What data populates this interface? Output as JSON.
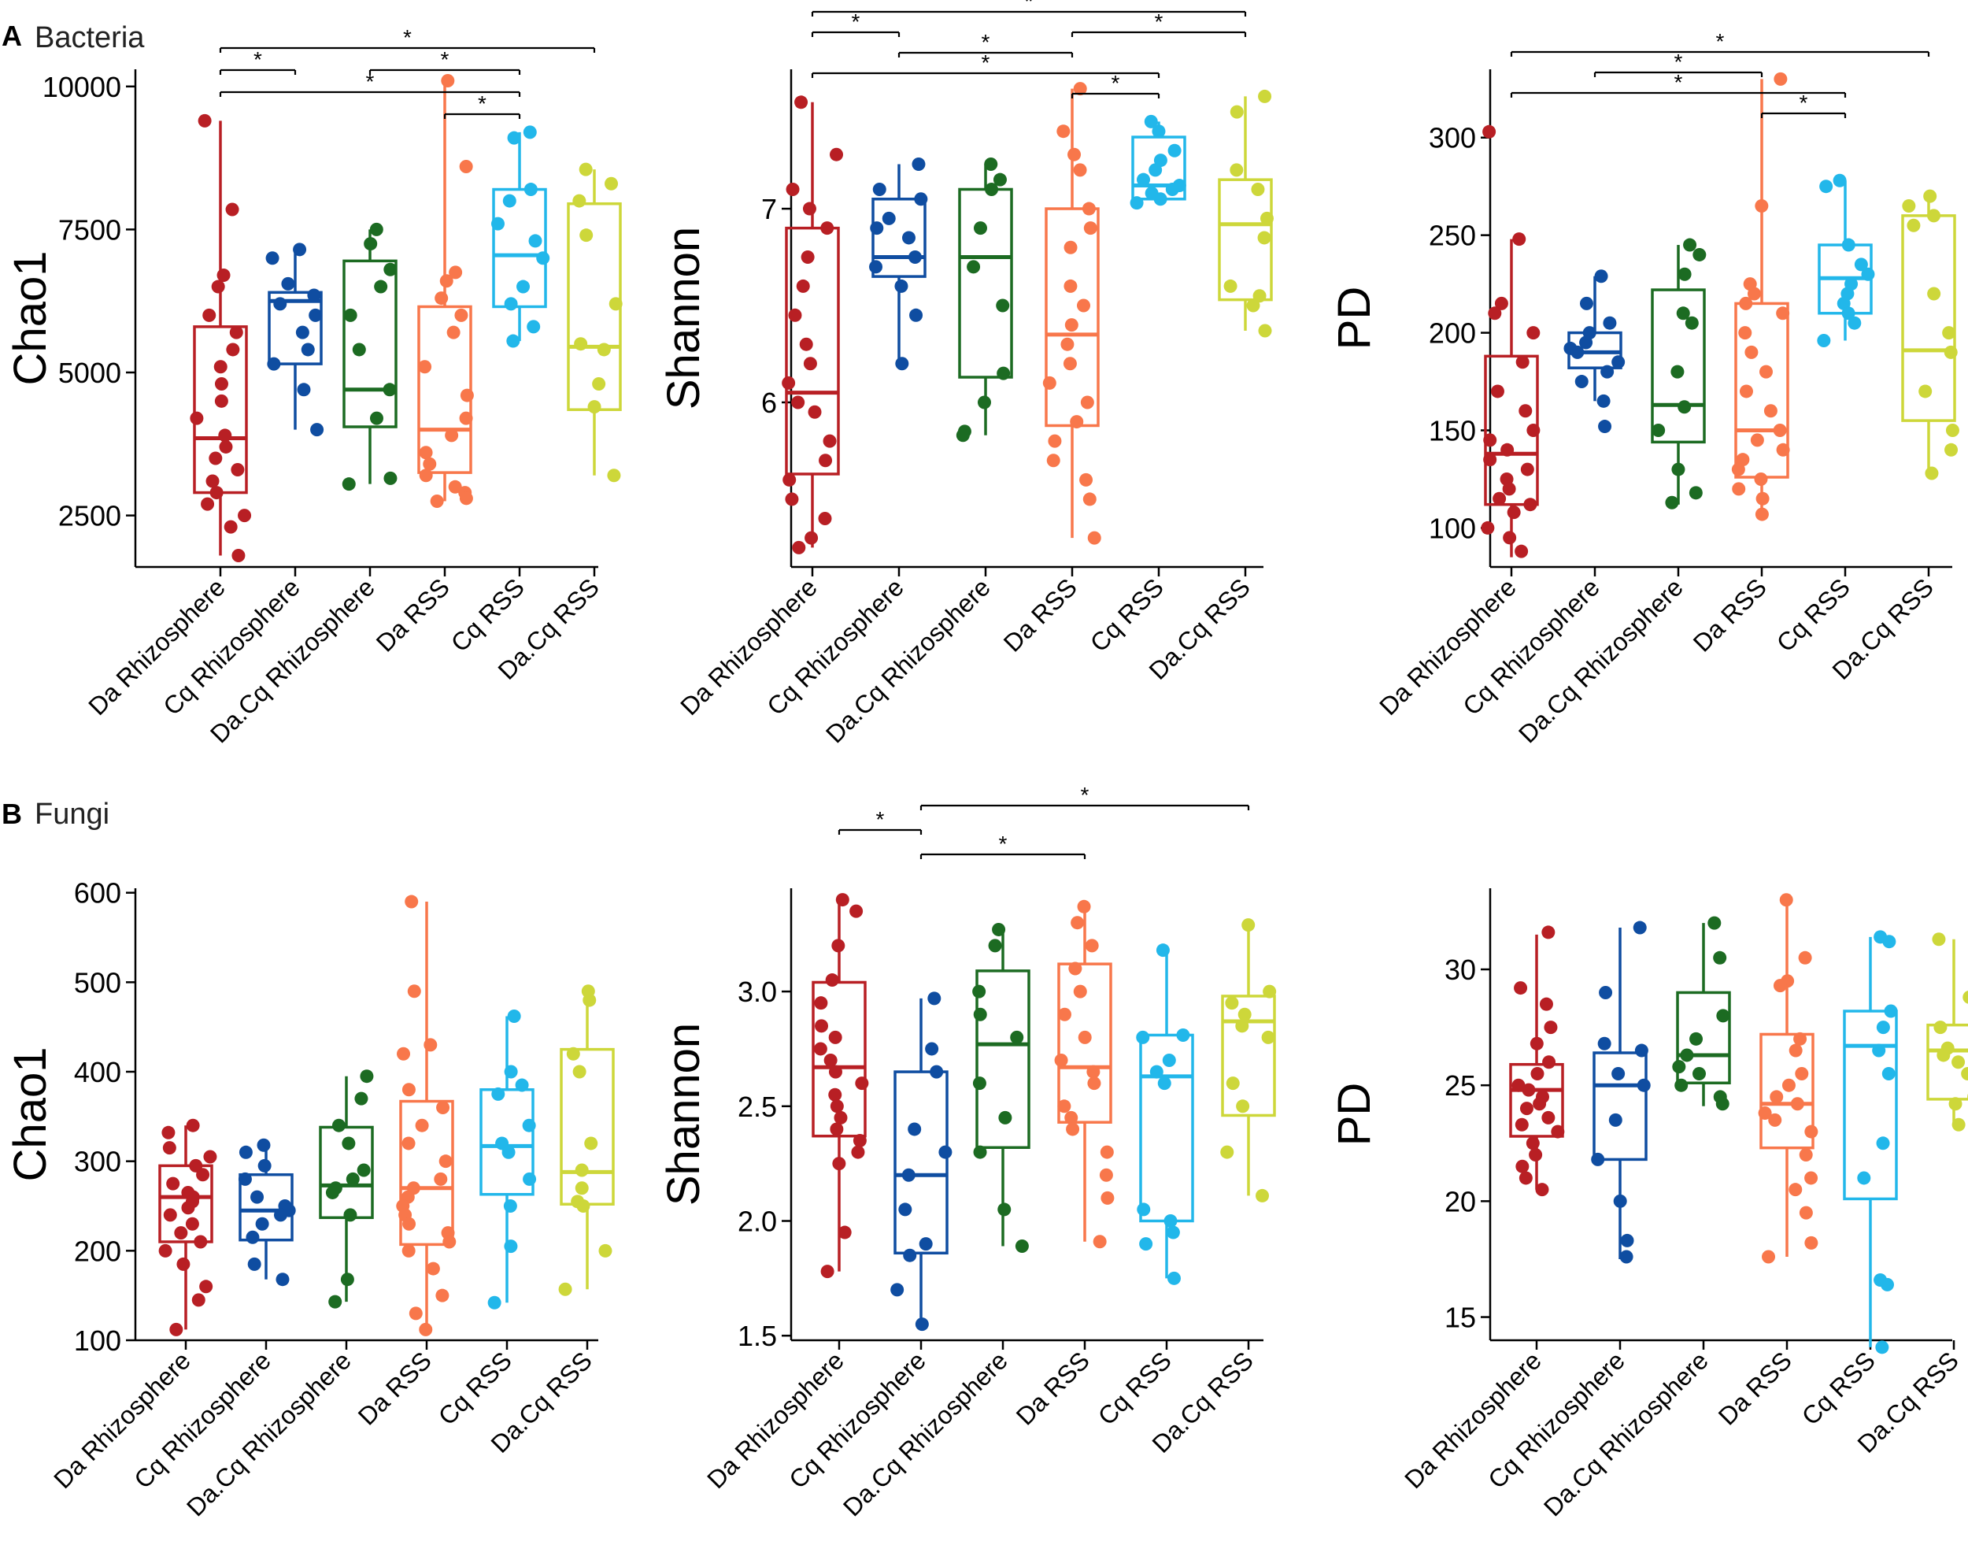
{
  "figure": {
    "groups": [
      "Da Rhizosphere",
      "Cq Rhizosphere",
      "Da.Cq Rhizosphere",
      "Da RSS",
      "Cq RSS",
      "Da.Cq RSS"
    ],
    "colors": [
      "#b81f24",
      "#0f4da1",
      "#1c6b22",
      "#f8774b",
      "#22b7ea",
      "#cdd73a"
    ],
    "sections": [
      {
        "letter": "A",
        "title": "Bacteria"
      },
      {
        "letter": "B",
        "title": "Fungi"
      }
    ],
    "significance_mark": "*"
  },
  "chart_data": [
    {
      "type": "box",
      "section": "Bacteria",
      "ylabel": "Chao1",
      "ylim": [
        1600,
        10300
      ],
      "yticks": [
        2500,
        5000,
        7500,
        10000
      ],
      "boxes": [
        {
          "q1": 2900,
          "median": 3850,
          "q3": 5800,
          "wl": 1800,
          "wh": 9400
        },
        {
          "q1": 5150,
          "median": 6250,
          "q3": 6400,
          "wl": 4000,
          "wh": 7150
        },
        {
          "q1": 4050,
          "median": 4700,
          "q3": 6950,
          "wl": 3050,
          "wh": 7500
        },
        {
          "q1": 3250,
          "median": 4000,
          "q3": 6150,
          "wl": 2750,
          "wh": 10100
        },
        {
          "q1": 6150,
          "median": 7050,
          "q3": 8200,
          "wl": 5550,
          "wh": 9200
        },
        {
          "q1": 4350,
          "median": 5450,
          "q3": 7950,
          "wl": 3200,
          "wh": 8550
        }
      ],
      "points": [
        [
          9400,
          7850,
          6700,
          6500,
          6000,
          5700,
          5400,
          5100,
          4800,
          4500,
          4200,
          3900,
          3700,
          3500,
          3300,
          3100,
          2900,
          2700,
          2500,
          2300,
          1800
        ],
        [
          7150,
          7000,
          6550,
          6350,
          6200,
          6000,
          5700,
          5400,
          5150,
          4700,
          4000
        ],
        [
          7500,
          7250,
          6800,
          6500,
          6000,
          5400,
          4700,
          4200,
          3150,
          3050
        ],
        [
          10100,
          8600,
          6750,
          6600,
          6300,
          6000,
          5700,
          5100,
          4600,
          4200,
          3900,
          3600,
          3400,
          3200,
          3000,
          2900,
          2800,
          2750
        ],
        [
          9200,
          9100,
          8200,
          8000,
          7600,
          7300,
          7000,
          6500,
          6200,
          5800,
          5550
        ],
        [
          8550,
          8300,
          8000,
          7400,
          6200,
          5500,
          5400,
          4800,
          4400,
          3200
        ]
      ],
      "brackets": [
        {
          "from": 0,
          "to": 1,
          "level": 2
        },
        {
          "from": 0,
          "to": 4,
          "level": 1
        },
        {
          "from": 0,
          "to": 5,
          "level": 3
        },
        {
          "from": 2,
          "to": 4,
          "level": 2
        },
        {
          "from": 3,
          "to": 4,
          "level": 0
        }
      ]
    },
    {
      "type": "box",
      "section": "Bacteria",
      "ylabel": "Shannon",
      "ylim": [
        5.15,
        7.72
      ],
      "yticks": [
        6,
        7
      ],
      "boxes": [
        {
          "q1": 5.63,
          "median": 6.05,
          "q3": 6.9,
          "wl": 5.25,
          "wh": 7.55
        },
        {
          "q1": 6.65,
          "median": 6.75,
          "q3": 7.05,
          "wl": 6.2,
          "wh": 7.23
        },
        {
          "q1": 6.13,
          "median": 6.75,
          "q3": 7.1,
          "wl": 5.83,
          "wh": 7.23
        },
        {
          "q1": 5.88,
          "median": 6.35,
          "q3": 7.0,
          "wl": 5.3,
          "wh": 7.62
        },
        {
          "q1": 7.05,
          "median": 7.12,
          "q3": 7.37,
          "wl": 7.03,
          "wh": 7.45
        },
        {
          "q1": 6.53,
          "median": 6.92,
          "q3": 7.15,
          "wl": 6.37,
          "wh": 7.58
        }
      ],
      "points": [
        [
          7.55,
          7.28,
          7.1,
          7.0,
          6.9,
          6.75,
          6.6,
          6.45,
          6.3,
          6.2,
          6.1,
          6.0,
          5.95,
          5.8,
          5.7,
          5.6,
          5.5,
          5.4,
          5.3,
          5.25
        ],
        [
          7.23,
          7.1,
          7.05,
          6.95,
          6.9,
          6.85,
          6.75,
          6.7,
          6.6,
          6.45,
          6.2
        ],
        [
          7.23,
          7.15,
          7.1,
          6.9,
          6.7,
          6.5,
          6.15,
          6.0,
          5.85,
          5.83
        ],
        [
          7.62,
          7.4,
          7.28,
          7.2,
          7.0,
          6.9,
          6.8,
          6.6,
          6.5,
          6.4,
          6.3,
          6.2,
          6.1,
          6.0,
          5.9,
          5.8,
          5.7,
          5.6,
          5.5,
          5.3
        ],
        [
          7.45,
          7.4,
          7.3,
          7.25,
          7.2,
          7.15,
          7.12,
          7.1,
          7.08,
          7.05,
          7.03
        ],
        [
          7.58,
          7.5,
          7.2,
          7.1,
          6.95,
          6.85,
          6.6,
          6.55,
          6.5,
          6.37
        ]
      ],
      "brackets": [
        {
          "from": 0,
          "to": 1,
          "level": 3
        },
        {
          "from": 0,
          "to": 4,
          "level": 1
        },
        {
          "from": 0,
          "to": 5,
          "level": 4
        },
        {
          "from": 1,
          "to": 3,
          "level": 2
        },
        {
          "from": 3,
          "to": 4,
          "level": 0
        },
        {
          "from": 3,
          "to": 5,
          "level": 3
        }
      ]
    },
    {
      "type": "box",
      "section": "Bacteria",
      "ylabel": "PD",
      "ylim": [
        80,
        335
      ],
      "yticks": [
        100,
        150,
        200,
        250,
        300
      ],
      "boxes": [
        {
          "q1": 112,
          "median": 138,
          "q3": 188,
          "wl": 85,
          "wh": 248
        },
        {
          "q1": 182,
          "median": 190,
          "q3": 200,
          "wl": 165,
          "wh": 229
        },
        {
          "q1": 144,
          "median": 163,
          "q3": 222,
          "wl": 112,
          "wh": 245
        },
        {
          "q1": 126,
          "median": 150,
          "q3": 215,
          "wl": 107,
          "wh": 330
        },
        {
          "q1": 210,
          "median": 228,
          "q3": 245,
          "wl": 196,
          "wh": 278
        },
        {
          "q1": 155,
          "median": 191,
          "q3": 260,
          "wl": 128,
          "wh": 270
        }
      ],
      "points": [
        [
          303,
          248,
          215,
          210,
          200,
          185,
          170,
          160,
          150,
          145,
          140,
          135,
          130,
          125,
          120,
          115,
          112,
          108,
          100,
          95,
          88
        ],
        [
          229,
          215,
          205,
          200,
          195,
          192,
          190,
          185,
          180,
          175,
          165,
          152
        ],
        [
          245,
          240,
          230,
          210,
          205,
          180,
          162,
          150,
          130,
          118,
          113
        ],
        [
          330,
          265,
          225,
          220,
          215,
          210,
          200,
          190,
          180,
          170,
          160,
          150,
          145,
          140,
          135,
          130,
          125,
          120,
          115,
          107
        ],
        [
          278,
          275,
          245,
          235,
          230,
          225,
          220,
          215,
          210,
          205,
          196
        ],
        [
          270,
          265,
          260,
          255,
          220,
          200,
          190,
          170,
          150,
          140,
          128
        ]
      ],
      "brackets": [
        {
          "from": 0,
          "to": 4,
          "level": 1
        },
        {
          "from": 0,
          "to": 5,
          "level": 3
        },
        {
          "from": 1,
          "to": 3,
          "level": 2
        },
        {
          "from": 3,
          "to": 4,
          "level": 0
        }
      ]
    },
    {
      "type": "box",
      "section": "Fungi",
      "ylabel": "Chao1",
      "ylim": [
        100,
        605
      ],
      "yticks": [
        100,
        200,
        300,
        400,
        500,
        600
      ],
      "boxes": [
        {
          "q1": 210,
          "median": 260,
          "q3": 295,
          "wl": 112,
          "wh": 340
        },
        {
          "q1": 212,
          "median": 245,
          "q3": 285,
          "wl": 168,
          "wh": 318
        },
        {
          "q1": 237,
          "median": 273,
          "q3": 338,
          "wl": 143,
          "wh": 395
        },
        {
          "q1": 207,
          "median": 270,
          "q3": 367,
          "wl": 112,
          "wh": 590
        },
        {
          "q1": 263,
          "median": 317,
          "q3": 380,
          "wl": 142,
          "wh": 462
        },
        {
          "q1": 252,
          "median": 288,
          "q3": 425,
          "wl": 157,
          "wh": 490
        }
      ],
      "points": [
        [
          340,
          332,
          315,
          305,
          295,
          285,
          275,
          265,
          260,
          255,
          248,
          240,
          230,
          220,
          210,
          200,
          185,
          160,
          145,
          112
        ],
        [
          318,
          310,
          295,
          280,
          260,
          250,
          245,
          240,
          230,
          215,
          185,
          168
        ],
        [
          395,
          370,
          340,
          320,
          290,
          280,
          270,
          265,
          240,
          168,
          143
        ],
        [
          590,
          490,
          430,
          420,
          380,
          360,
          340,
          320,
          300,
          280,
          270,
          260,
          250,
          240,
          230,
          220,
          210,
          200,
          180,
          150,
          130,
          112
        ],
        [
          462,
          400,
          385,
          375,
          340,
          320,
          310,
          280,
          250,
          205,
          142
        ],
        [
          490,
          480,
          420,
          400,
          320,
          290,
          270,
          255,
          250,
          200,
          157
        ]
      ],
      "brackets": []
    },
    {
      "type": "box",
      "section": "Fungi",
      "ylabel": "Shannon",
      "ylim": [
        1.48,
        3.45
      ],
      "yticks": [
        1.5,
        2.0,
        2.5,
        3.0
      ],
      "yticklabels": [
        "1.5",
        "2.0",
        "2.5",
        "3.0"
      ],
      "boxes": [
        {
          "q1": 2.37,
          "median": 2.67,
          "q3": 3.04,
          "wl": 1.78,
          "wh": 3.38
        },
        {
          "q1": 1.86,
          "median": 2.2,
          "q3": 2.65,
          "wl": 1.55,
          "wh": 2.97
        },
        {
          "q1": 2.32,
          "median": 2.77,
          "q3": 3.09,
          "wl": 1.89,
          "wh": 3.27
        },
        {
          "q1": 2.43,
          "median": 2.67,
          "q3": 3.12,
          "wl": 1.91,
          "wh": 3.37
        },
        {
          "q1": 2.0,
          "median": 2.63,
          "q3": 2.81,
          "wl": 1.75,
          "wh": 3.18
        },
        {
          "q1": 2.46,
          "median": 2.87,
          "q3": 2.98,
          "wl": 2.11,
          "wh": 3.29
        }
      ],
      "points": [
        [
          3.4,
          3.35,
          3.2,
          3.05,
          2.95,
          2.85,
          2.8,
          2.75,
          2.7,
          2.65,
          2.6,
          2.55,
          2.5,
          2.45,
          2.4,
          2.35,
          2.3,
          2.25,
          1.95,
          1.78
        ],
        [
          2.97,
          2.75,
          2.65,
          2.4,
          2.3,
          2.2,
          2.05,
          1.9,
          1.85,
          1.7,
          1.55
        ],
        [
          3.27,
          3.2,
          3.0,
          2.9,
          2.8,
          2.6,
          2.45,
          2.3,
          2.05,
          1.89
        ],
        [
          3.37,
          3.3,
          3.2,
          3.1,
          3.0,
          2.9,
          2.8,
          2.7,
          2.65,
          2.6,
          2.5,
          2.45,
          2.4,
          2.3,
          2.2,
          2.1,
          1.91
        ],
        [
          3.18,
          2.81,
          2.8,
          2.7,
          2.65,
          2.6,
          2.05,
          2.0,
          1.95,
          1.9,
          1.75
        ],
        [
          3.29,
          3.0,
          2.95,
          2.9,
          2.85,
          2.8,
          2.6,
          2.5,
          2.3,
          2.11
        ]
      ],
      "brackets": [
        {
          "from": 0,
          "to": 1,
          "level": 1
        },
        {
          "from": 1,
          "to": 3,
          "level": 0
        },
        {
          "from": 1,
          "to": 5,
          "level": 2
        }
      ]
    },
    {
      "type": "box",
      "section": "Fungi",
      "ylabel": "PD",
      "ylim": [
        14,
        33.5
      ],
      "yticks": [
        15,
        20,
        25,
        30
      ],
      "boxes": [
        {
          "q1": 22.8,
          "median": 24.8,
          "q3": 25.9,
          "wl": 20.5,
          "wh": 31.5
        },
        {
          "q1": 21.8,
          "median": 25.0,
          "q3": 26.4,
          "wl": 17.5,
          "wh": 31.8
        },
        {
          "q1": 25.1,
          "median": 26.3,
          "q3": 29.0,
          "wl": 24.1,
          "wh": 32.0
        },
        {
          "q1": 22.3,
          "median": 24.2,
          "q3": 27.2,
          "wl": 17.6,
          "wh": 33.0
        },
        {
          "q1": 20.1,
          "median": 26.7,
          "q3": 28.2,
          "wl": 13.7,
          "wh": 31.4
        },
        {
          "q1": 24.4,
          "median": 26.5,
          "q3": 27.6,
          "wl": 23.3,
          "wh": 31.3
        }
      ],
      "points": [
        [
          31.6,
          29.2,
          28.5,
          27.5,
          26.8,
          26.0,
          25.5,
          25.0,
          24.8,
          24.5,
          24.2,
          24.0,
          23.6,
          23.3,
          23.0,
          22.5,
          22.0,
          21.5,
          21.0,
          20.5
        ],
        [
          31.8,
          29.0,
          26.8,
          26.5,
          25.5,
          25.0,
          23.5,
          21.8,
          20.0,
          18.3,
          17.6
        ],
        [
          32.0,
          30.5,
          28.0,
          27.0,
          26.3,
          25.8,
          25.5,
          25.0,
          24.5,
          24.2
        ],
        [
          33.0,
          30.5,
          29.5,
          29.3,
          27.0,
          26.5,
          25.5,
          25.0,
          24.5,
          24.2,
          23.8,
          23.5,
          23.0,
          22.0,
          21.0,
          20.5,
          19.5,
          18.2,
          17.6
        ],
        [
          31.4,
          31.2,
          28.2,
          27.5,
          26.5,
          25.5,
          22.5,
          21.0,
          16.6,
          16.4,
          13.7
        ],
        [
          31.3,
          28.8,
          27.5,
          26.6,
          26.5,
          26.3,
          26.0,
          25.5,
          24.5,
          24.2,
          23.3
        ]
      ],
      "brackets": []
    }
  ]
}
